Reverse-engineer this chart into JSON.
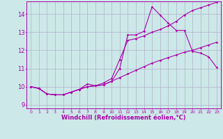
{
  "background_color": "#cce8e8",
  "line_color": "#aa00aa",
  "grid_color": "#b0b0cc",
  "xlabel": "Windchill (Refroidissement éolien,°C)",
  "xlabel_fontsize": 6.0,
  "xtick_fontsize": 4.5,
  "ytick_fontsize": 6.0,
  "ylim": [
    8.8,
    14.7
  ],
  "xlim": [
    -0.5,
    23.5
  ],
  "line1_y": [
    10.0,
    9.9,
    9.6,
    9.55,
    9.55,
    9.7,
    9.85,
    10.0,
    10.05,
    10.1,
    10.3,
    11.0,
    12.85,
    12.85,
    13.05,
    14.4,
    13.95,
    13.5,
    13.1,
    13.1,
    11.95,
    11.85,
    11.65,
    11.05
  ],
  "line2_y": [
    10.0,
    9.9,
    9.6,
    9.55,
    9.55,
    9.7,
    9.85,
    10.15,
    10.05,
    10.2,
    10.45,
    11.5,
    12.55,
    12.65,
    12.8,
    13.0,
    13.15,
    13.35,
    13.6,
    13.95,
    14.2,
    14.35,
    14.5,
    14.65
  ],
  "line3_y": [
    10.0,
    9.9,
    9.6,
    9.55,
    9.55,
    9.7,
    9.85,
    10.0,
    10.05,
    10.1,
    10.3,
    10.5,
    10.7,
    10.9,
    11.1,
    11.3,
    11.45,
    11.6,
    11.75,
    11.9,
    12.0,
    12.15,
    12.3,
    12.45
  ],
  "yticks": [
    9,
    10,
    11,
    12,
    13,
    14
  ],
  "marker": "D",
  "markersize": 1.8,
  "linewidth": 0.8
}
